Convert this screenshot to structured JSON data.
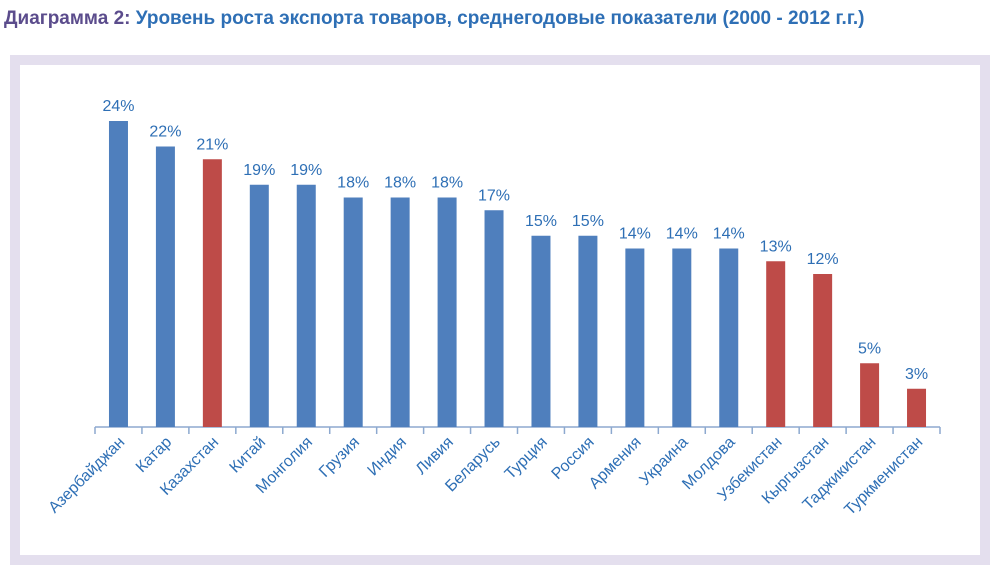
{
  "title": {
    "lead": "Диаграмма 2:",
    "rest": " Уровень роста экспорта товаров, среднегодовые показатели (2000 - 2012 г.г.)"
  },
  "colors": {
    "blue": "#4f7fbd",
    "red": "#be4b48",
    "label": "#2e6fb5",
    "axis": "#8da9cf"
  },
  "chart_data": {
    "type": "bar",
    "categories": [
      "Азербайджан",
      "Катар",
      "Казахстан",
      "Китай",
      "Монголия",
      "Грузия",
      "Индия",
      "Ливия",
      "Беларусь",
      "Турция",
      "Россия",
      "Армения",
      "Украина",
      "Молдова",
      "Узбекистан",
      "Кыргызстан",
      "Таджикистан",
      "Туркменистан"
    ],
    "values": [
      24,
      22,
      21,
      19,
      19,
      18,
      18,
      18,
      17,
      15,
      15,
      14,
      14,
      14,
      13,
      12,
      5,
      3
    ],
    "value_labels": [
      "24%",
      "22%",
      "21%",
      "19%",
      "19%",
      "18%",
      "18%",
      "18%",
      "17%",
      "15%",
      "15%",
      "14%",
      "14%",
      "14%",
      "13%",
      "12%",
      "5%",
      "3%"
    ],
    "highlighted": [
      "Казахстан",
      "Узбекистан",
      "Кыргызстан",
      "Таджикистан",
      "Туркменистан"
    ],
    "ylim": [
      0,
      24
    ],
    "grid": false,
    "legend": "none"
  }
}
